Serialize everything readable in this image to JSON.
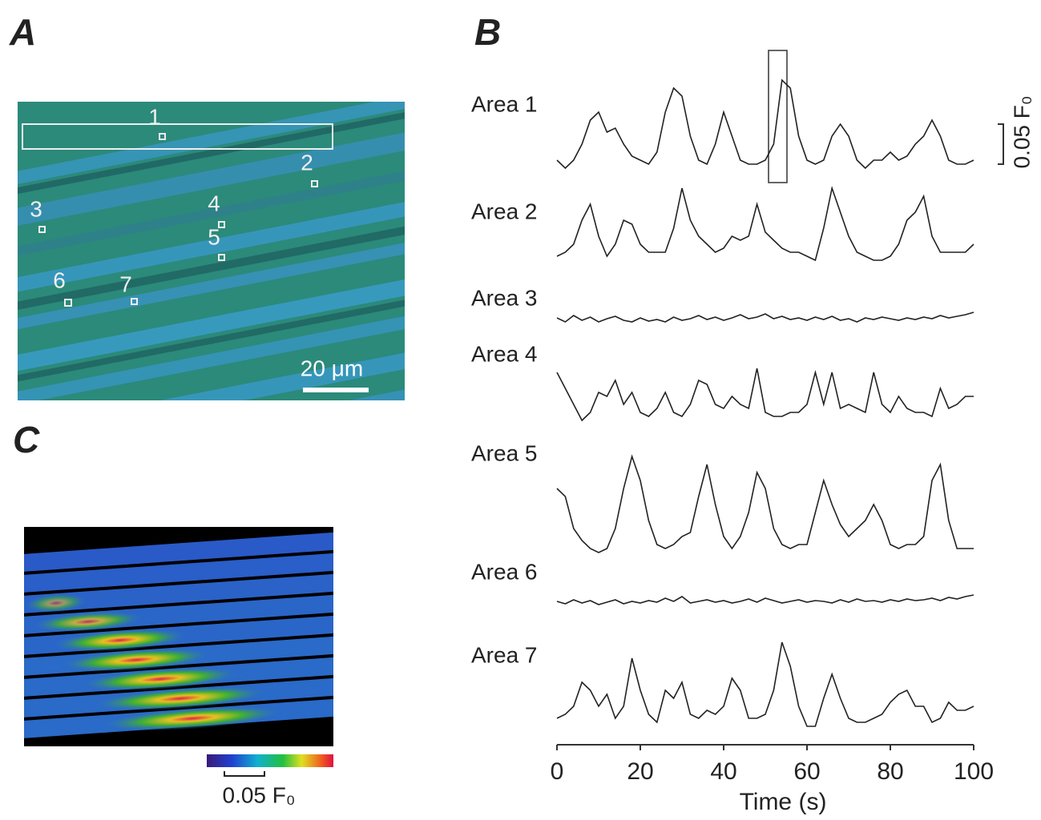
{
  "panel_a": {
    "label": "A",
    "regions": [
      "1",
      "2",
      "3",
      "4",
      "5",
      "6",
      "7"
    ],
    "scale_bar": "20 μm"
  },
  "panel_c": {
    "label": "C",
    "scale_bar": "0.05 F₀"
  },
  "chart_data": {
    "type": "line",
    "panel_label": "B",
    "xlabel": "Time (s)",
    "xlim": [
      0,
      100
    ],
    "xticks": [
      0,
      20,
      40,
      60,
      80,
      100
    ],
    "scale_bar": {
      "value": 0.05,
      "label": "0.05 F₀"
    },
    "x": [
      0,
      2,
      4,
      6,
      8,
      10,
      12,
      14,
      16,
      18,
      20,
      22,
      24,
      26,
      28,
      30,
      32,
      34,
      36,
      38,
      40,
      42,
      44,
      46,
      48,
      50,
      52,
      54,
      56,
      58,
      60,
      62,
      64,
      66,
      68,
      70,
      72,
      74,
      76,
      78,
      80,
      82,
      84,
      86,
      88,
      90,
      92,
      94,
      96,
      98,
      100
    ],
    "series": [
      {
        "name": "Area 1",
        "color": "#222222",
        "values": [
          0.01,
          0.0,
          0.01,
          0.03,
          0.06,
          0.07,
          0.045,
          0.05,
          0.03,
          0.015,
          0.01,
          0.005,
          0.02,
          0.07,
          0.1,
          0.09,
          0.04,
          0.01,
          0.005,
          0.03,
          0.07,
          0.04,
          0.01,
          0.005,
          0.005,
          0.01,
          0.03,
          0.11,
          0.1,
          0.04,
          0.01,
          0.005,
          0.01,
          0.04,
          0.055,
          0.04,
          0.01,
          0.0,
          0.01,
          0.01,
          0.02,
          0.01,
          0.015,
          0.03,
          0.04,
          0.06,
          0.04,
          0.01,
          0.005,
          0.005,
          0.01
        ]
      },
      {
        "name": "Area 2",
        "color": "#222222",
        "values": [
          0.005,
          0.01,
          0.02,
          0.05,
          0.07,
          0.03,
          0.005,
          0.02,
          0.05,
          0.045,
          0.02,
          0.01,
          0.01,
          0.01,
          0.04,
          0.09,
          0.05,
          0.03,
          0.02,
          0.01,
          0.015,
          0.03,
          0.025,
          0.03,
          0.07,
          0.035,
          0.025,
          0.015,
          0.01,
          0.01,
          0.005,
          0.0,
          0.04,
          0.09,
          0.06,
          0.03,
          0.01,
          0.005,
          0.0,
          0.0,
          0.005,
          0.02,
          0.05,
          0.06,
          0.08,
          0.03,
          0.01,
          0.01,
          0.01,
          0.01,
          0.02
        ]
      },
      {
        "name": "Area 3",
        "color": "#222222",
        "values": [
          0.005,
          0.0,
          0.008,
          0.002,
          0.006,
          0.0,
          0.004,
          0.007,
          0.002,
          0.0,
          0.005,
          0.001,
          0.003,
          0.0,
          0.006,
          0.002,
          0.004,
          0.008,
          0.003,
          0.006,
          0.002,
          0.005,
          0.009,
          0.004,
          0.006,
          0.01,
          0.004,
          0.007,
          0.003,
          0.005,
          0.002,
          0.006,
          0.003,
          0.007,
          0.002,
          0.004,
          0.0,
          0.005,
          0.003,
          0.006,
          0.004,
          0.002,
          0.005,
          0.003,
          0.006,
          0.004,
          0.008,
          0.005,
          0.007,
          0.009,
          0.012
        ]
      },
      {
        "name": "Area 4",
        "color": "#222222",
        "values": [
          0.06,
          0.04,
          0.02,
          0.0,
          0.01,
          0.035,
          0.03,
          0.05,
          0.02,
          0.035,
          0.01,
          0.005,
          0.015,
          0.035,
          0.01,
          0.005,
          0.02,
          0.05,
          0.045,
          0.02,
          0.015,
          0.03,
          0.02,
          0.015,
          0.065,
          0.01,
          0.005,
          0.005,
          0.01,
          0.01,
          0.02,
          0.06,
          0.02,
          0.06,
          0.015,
          0.02,
          0.015,
          0.01,
          0.06,
          0.02,
          0.01,
          0.03,
          0.015,
          0.01,
          0.01,
          0.005,
          0.04,
          0.015,
          0.02,
          0.03,
          0.03
        ]
      },
      {
        "name": "Area 5",
        "color": "#222222",
        "values": [
          0.08,
          0.07,
          0.03,
          0.015,
          0.005,
          0.0,
          0.005,
          0.03,
          0.08,
          0.12,
          0.09,
          0.04,
          0.01,
          0.005,
          0.01,
          0.02,
          0.025,
          0.07,
          0.11,
          0.06,
          0.02,
          0.005,
          0.02,
          0.05,
          0.1,
          0.08,
          0.03,
          0.01,
          0.005,
          0.01,
          0.01,
          0.05,
          0.09,
          0.06,
          0.035,
          0.02,
          0.03,
          0.04,
          0.06,
          0.04,
          0.01,
          0.005,
          0.01,
          0.01,
          0.02,
          0.09,
          0.11,
          0.04,
          0.005,
          0.005,
          0.005
        ]
      },
      {
        "name": "Area 6",
        "color": "#222222",
        "values": [
          0.004,
          0.001,
          0.006,
          0.002,
          0.005,
          0.0,
          0.003,
          0.006,
          0.001,
          0.004,
          0.002,
          0.005,
          0.003,
          0.008,
          0.004,
          0.01,
          0.002,
          0.004,
          0.006,
          0.003,
          0.005,
          0.002,
          0.004,
          0.007,
          0.003,
          0.008,
          0.005,
          0.002,
          0.004,
          0.006,
          0.003,
          0.005,
          0.004,
          0.002,
          0.006,
          0.003,
          0.007,
          0.004,
          0.005,
          0.003,
          0.006,
          0.004,
          0.007,
          0.005,
          0.006,
          0.008,
          0.005,
          0.009,
          0.007,
          0.01,
          0.012
        ]
      },
      {
        "name": "Area 7",
        "color": "#222222",
        "values": [
          0.015,
          0.02,
          0.03,
          0.06,
          0.05,
          0.03,
          0.045,
          0.015,
          0.03,
          0.09,
          0.05,
          0.02,
          0.01,
          0.05,
          0.04,
          0.06,
          0.02,
          0.015,
          0.025,
          0.02,
          0.03,
          0.065,
          0.05,
          0.015,
          0.015,
          0.02,
          0.05,
          0.11,
          0.08,
          0.03,
          0.005,
          0.005,
          0.04,
          0.07,
          0.04,
          0.015,
          0.01,
          0.01,
          0.015,
          0.02,
          0.035,
          0.045,
          0.05,
          0.03,
          0.03,
          0.01,
          0.015,
          0.035,
          0.025,
          0.025,
          0.03
        ]
      }
    ]
  }
}
